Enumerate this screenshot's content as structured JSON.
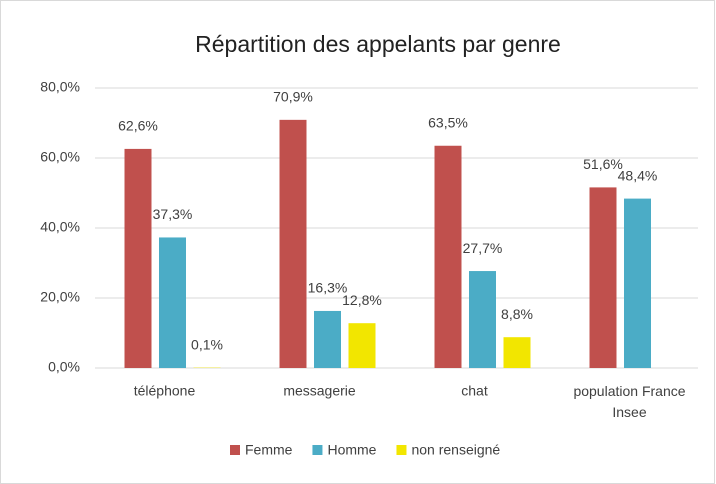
{
  "chart_data": {
    "type": "bar",
    "title": "Répartition des appelants par genre",
    "categories": [
      "téléphone",
      "messagerie",
      "chat",
      "population France Insee"
    ],
    "series": [
      {
        "name": "Femme",
        "color": "#c0504d",
        "values": [
          62.6,
          70.9,
          63.5,
          51.6
        ],
        "value_labels": [
          "62,6%",
          "70,9%",
          "63,5%",
          "51,6%"
        ]
      },
      {
        "name": "Homme",
        "color": "#4bacc6",
        "values": [
          37.3,
          16.3,
          27.7,
          48.4
        ],
        "value_labels": [
          "37,3%",
          "16,3%",
          "27,7%",
          "48,4%"
        ]
      },
      {
        "name": "non renseigné",
        "color": "#f2e600",
        "values": [
          0.1,
          12.8,
          8.8,
          null
        ],
        "value_labels": [
          "0,1%",
          "12,8%",
          "8,8%",
          null
        ]
      }
    ],
    "ylim": [
      0,
      80
    ],
    "yticks": [
      {
        "value": 0,
        "label": "0,0%"
      },
      {
        "value": 20,
        "label": "20,0%"
      },
      {
        "value": 40,
        "label": "40,0%"
      },
      {
        "value": 60,
        "label": "60,0%"
      },
      {
        "value": 80,
        "label": "80,0%"
      }
    ],
    "grid": true,
    "legend": "bottom"
  }
}
